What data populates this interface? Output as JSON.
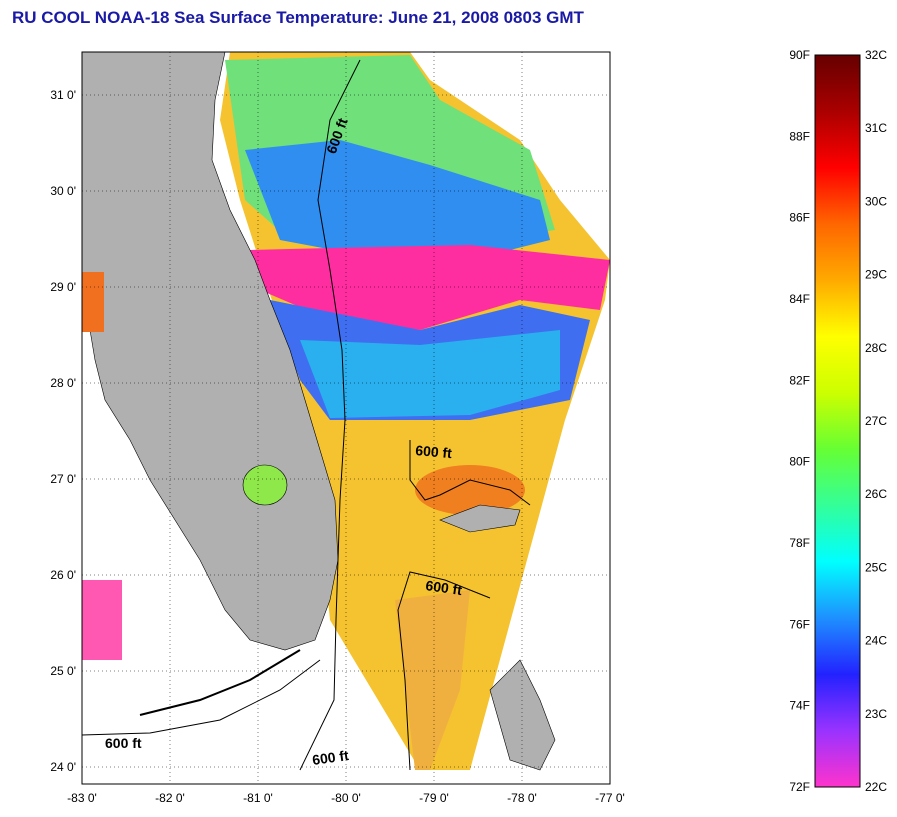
{
  "title": "RU COOL  NOAA-18  Sea Surface Temperature:  June 21, 2008 0803 GMT",
  "map": {
    "lon_ticks": [
      "-83 0'",
      "-82 0'",
      "-81 0'",
      "-80 0'",
      "-79 0'",
      "-78 0'",
      "-77 0'"
    ],
    "lat_ticks": [
      "31 0'",
      "30 0'",
      "29 0'",
      "28 0'",
      "27 0'",
      "26 0'",
      "25 0'",
      "24 0'"
    ],
    "contour_labels": [
      "600 ft",
      "600 ft",
      "600 ft",
      "600 ft",
      "600 ft"
    ],
    "land_color": "#b0b0b0",
    "water_colors": {
      "warm": "#f5a623",
      "mid": "#22ddee",
      "cool": "#3f5ff0",
      "pink": "#ff2ea0",
      "green": "#8ee84a"
    }
  },
  "colorbar": {
    "f_labels": [
      "90F",
      "88F",
      "86F",
      "84F",
      "82F",
      "80F",
      "78F",
      "76F",
      "74F",
      "72F"
    ],
    "c_labels": [
      "32C",
      "31C",
      "30C",
      "29C",
      "28C",
      "27C",
      "26C",
      "25C",
      "24C",
      "23C",
      "22C"
    ],
    "stops": [
      "#ff33cc",
      "#9933ff",
      "#2222ff",
      "#1e90ff",
      "#00ffff",
      "#33ff99",
      "#66ff33",
      "#ccff00",
      "#ffff00",
      "#ffaa00",
      "#ff6600",
      "#ff0000",
      "#aa0000",
      "#660000"
    ]
  }
}
